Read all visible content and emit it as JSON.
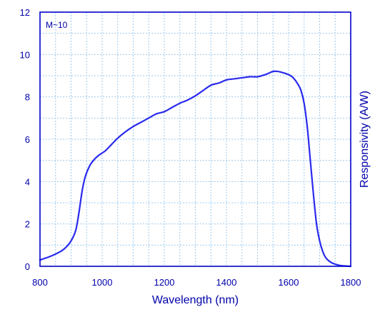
{
  "chart_data": {
    "type": "line",
    "title": "",
    "annotation": "M~10",
    "xlabel": "Wavelength (nm)",
    "ylabel": "Responsivity (A/W)",
    "xlim": [
      800,
      1800
    ],
    "ylim": [
      0,
      12
    ],
    "x_ticks": [
      800,
      1000,
      1200,
      1400,
      1600,
      1800
    ],
    "y_ticks": [
      0,
      2,
      4,
      6,
      8,
      10,
      12
    ],
    "x_minor_step": 50,
    "y_minor_step": 1,
    "grid": "dotted, major and minor",
    "legend": "none",
    "y_axis_side": "left ticks, title on right",
    "colors": {
      "axis": "#0000cc",
      "line": "#2a2aee",
      "grid": "#9ec9ec",
      "text": "#0000aa"
    },
    "series": [
      {
        "x": [
          800,
          830,
          860,
          880,
          900,
          915,
          925,
          935,
          945,
          960,
          975,
          990,
          1010,
          1030,
          1050,
          1075,
          1100,
          1125,
          1150,
          1175,
          1200,
          1225,
          1250,
          1275,
          1300,
          1325,
          1350,
          1375,
          1400,
          1425,
          1450,
          1475,
          1500,
          1525,
          1550,
          1565,
          1580,
          1600,
          1615,
          1630,
          1640,
          1650,
          1660,
          1670,
          1680,
          1690,
          1700,
          1710,
          1720,
          1735,
          1750,
          1770,
          1800
        ],
        "y": [
          0.3,
          0.45,
          0.65,
          0.85,
          1.2,
          1.7,
          2.5,
          3.5,
          4.2,
          4.75,
          5.05,
          5.25,
          5.45,
          5.75,
          6.05,
          6.35,
          6.6,
          6.8,
          7.0,
          7.2,
          7.3,
          7.5,
          7.7,
          7.85,
          8.05,
          8.3,
          8.55,
          8.65,
          8.8,
          8.85,
          8.9,
          8.95,
          8.95,
          9.05,
          9.2,
          9.2,
          9.15,
          9.05,
          8.9,
          8.6,
          8.3,
          7.7,
          6.6,
          5.0,
          3.4,
          2.0,
          1.2,
          0.7,
          0.4,
          0.2,
          0.1,
          0.03,
          0.0
        ]
      }
    ]
  }
}
